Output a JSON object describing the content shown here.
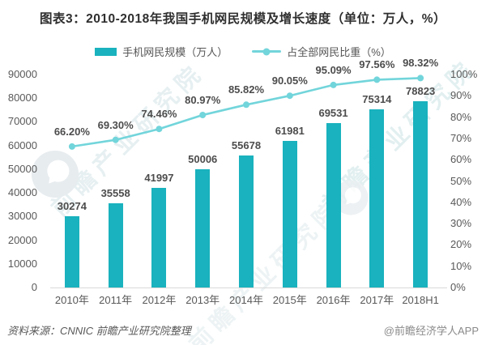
{
  "header": {
    "title": "图表3：2010-2018年我国手机网民规模及增长速度（单位：万人，%）"
  },
  "legend": {
    "items": [
      {
        "label": "手机网民规模（万人）",
        "marker": "bar"
      },
      {
        "label": "占全部网民比重（%）",
        "marker": "line"
      }
    ]
  },
  "chart_data": {
    "type": "bar",
    "title": "图表3：2010-2018年我国手机网民规模及增长速度（单位：万人，%）",
    "categories": [
      "2010年",
      "2011年",
      "2012年",
      "2013年",
      "2014年",
      "2015年",
      "2016年",
      "2017年",
      "2018H1"
    ],
    "series": [
      {
        "name": "手机网民规模（万人）",
        "type": "bar",
        "axis": "left",
        "values": [
          30274,
          35558,
          41997,
          50006,
          55678,
          61981,
          69531,
          75314,
          78823
        ]
      },
      {
        "name": "占全部网民比重（%）",
        "type": "line",
        "axis": "right",
        "values": [
          66.2,
          69.3,
          74.46,
          80.97,
          85.82,
          90.05,
          95.09,
          97.56,
          98.32
        ],
        "labels": [
          "66.20%",
          "69.30%",
          "74.46%",
          "80.97%",
          "85.82%",
          "90.05%",
          "95.09%",
          "97.56%",
          "98.32%"
        ]
      }
    ],
    "left_axis": {
      "min": 0,
      "max": 90000,
      "step": 10000,
      "ticks": [
        "0",
        "10000",
        "20000",
        "30000",
        "40000",
        "50000",
        "60000",
        "70000",
        "80000",
        "90000"
      ]
    },
    "right_axis": {
      "min": 0,
      "max": 100,
      "step": 10,
      "ticks": [
        "0%",
        "10%",
        "20%",
        "30%",
        "40%",
        "50%",
        "60%",
        "70%",
        "80%",
        "90%",
        "100%"
      ]
    },
    "grid": false,
    "legend_position": "top"
  },
  "colors": {
    "bar": "#19B2BE",
    "line": "#72D5DB",
    "label_text": "#4C4C4C",
    "tick_text": "#595959",
    "axis_line": "#D9D9D9",
    "title_text": "#2F2F2F"
  },
  "footer": {
    "source": "资料来源：CNNIC 前瞻产业研究院整理",
    "credit": "@前瞻经济学人APP"
  },
  "watermark": {
    "text": "前瞻产业研究院"
  }
}
